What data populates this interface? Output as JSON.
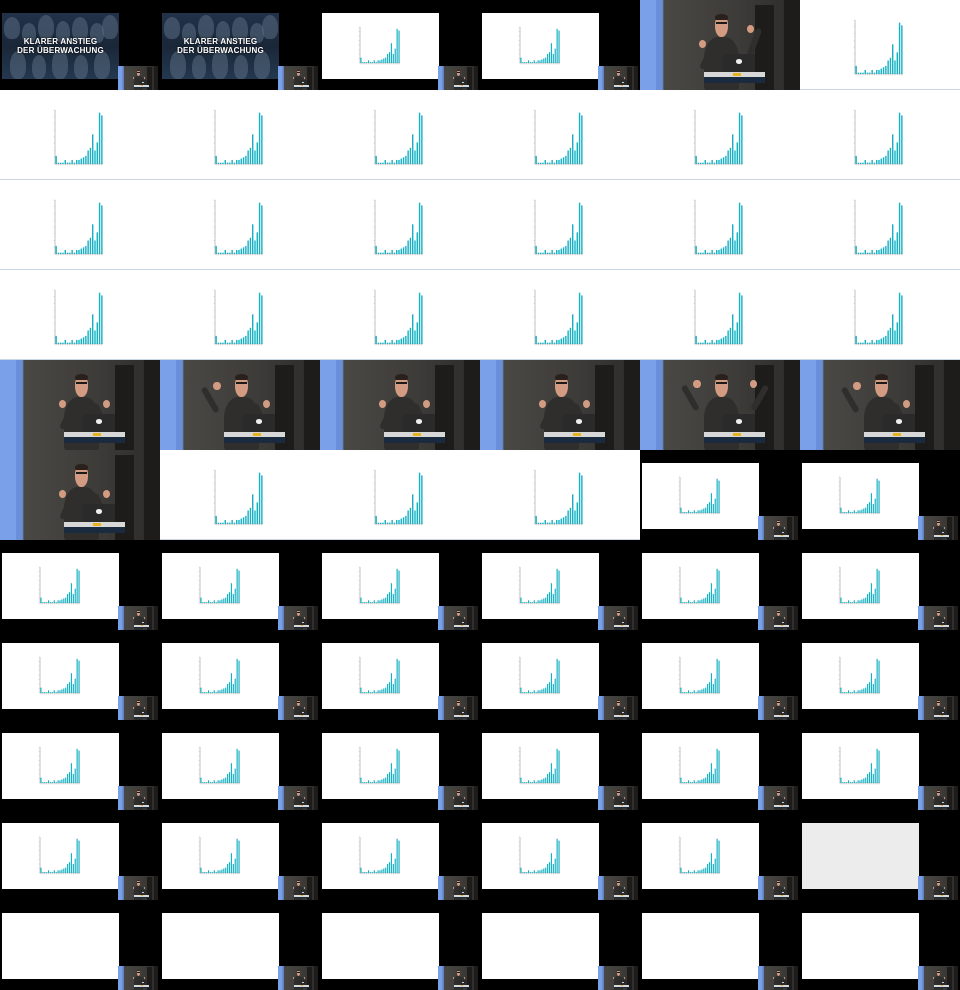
{
  "grid": {
    "columns": 6,
    "rows": 11,
    "tiles": [
      "title",
      "title",
      "chart-inset",
      "chart-inset",
      "stage",
      "chart-full",
      "chart-full",
      "chart-full",
      "chart-full",
      "chart-full",
      "chart-full",
      "chart-full",
      "chart-full",
      "chart-full",
      "chart-full",
      "chart-full",
      "chart-full",
      "chart-full",
      "chart-full",
      "chart-full",
      "chart-full",
      "chart-full",
      "chart-full",
      "chart-full",
      "stage",
      "stage",
      "stage",
      "stage",
      "stage",
      "stage",
      "stage",
      "chart-full",
      "chart-full",
      "chart-full",
      "chart-inset",
      "chart-inset",
      "chart-inset",
      "chart-inset",
      "chart-inset",
      "chart-inset",
      "chart-inset",
      "chart-inset",
      "chart-inset",
      "chart-inset",
      "chart-inset",
      "chart-inset",
      "chart-inset",
      "chart-inset",
      "chart-inset",
      "chart-inset",
      "chart-inset",
      "chart-inset",
      "chart-inset",
      "chart-inset",
      "chart-inset",
      "chart-inset",
      "chart-inset",
      "chart-inset",
      "chart-inset",
      "table-gray",
      "table",
      "table",
      "table",
      "table",
      "table",
      "table"
    ]
  },
  "title_card": {
    "line1": "KLARER ANSTIEG",
    "line2": "DER ÜBERWACHUNG"
  },
  "chart_data": {
    "type": "bar",
    "title": "",
    "xlabel": "",
    "ylabel": "",
    "categories": [
      "1",
      "2",
      "3",
      "4",
      "5",
      "6",
      "7",
      "8",
      "9",
      "10",
      "11",
      "12",
      "13",
      "14",
      "15",
      "16",
      "17",
      "18",
      "19",
      "20",
      "21"
    ],
    "values": [
      6,
      1,
      1,
      1,
      3,
      1,
      1,
      3,
      1,
      3,
      3,
      4,
      5,
      6,
      10,
      12,
      22,
      10,
      16,
      38,
      36
    ],
    "ylim": [
      0,
      40
    ],
    "grid": false,
    "bar_color": "#17b1c4"
  },
  "table_slide": {
    "title": "",
    "rows": []
  },
  "colors": {
    "background": "#000000",
    "slide_background": "#ffffff",
    "slide_gray": "#ececec",
    "bar": "#17b1c4",
    "stage_screen": "#6a8ed8"
  }
}
